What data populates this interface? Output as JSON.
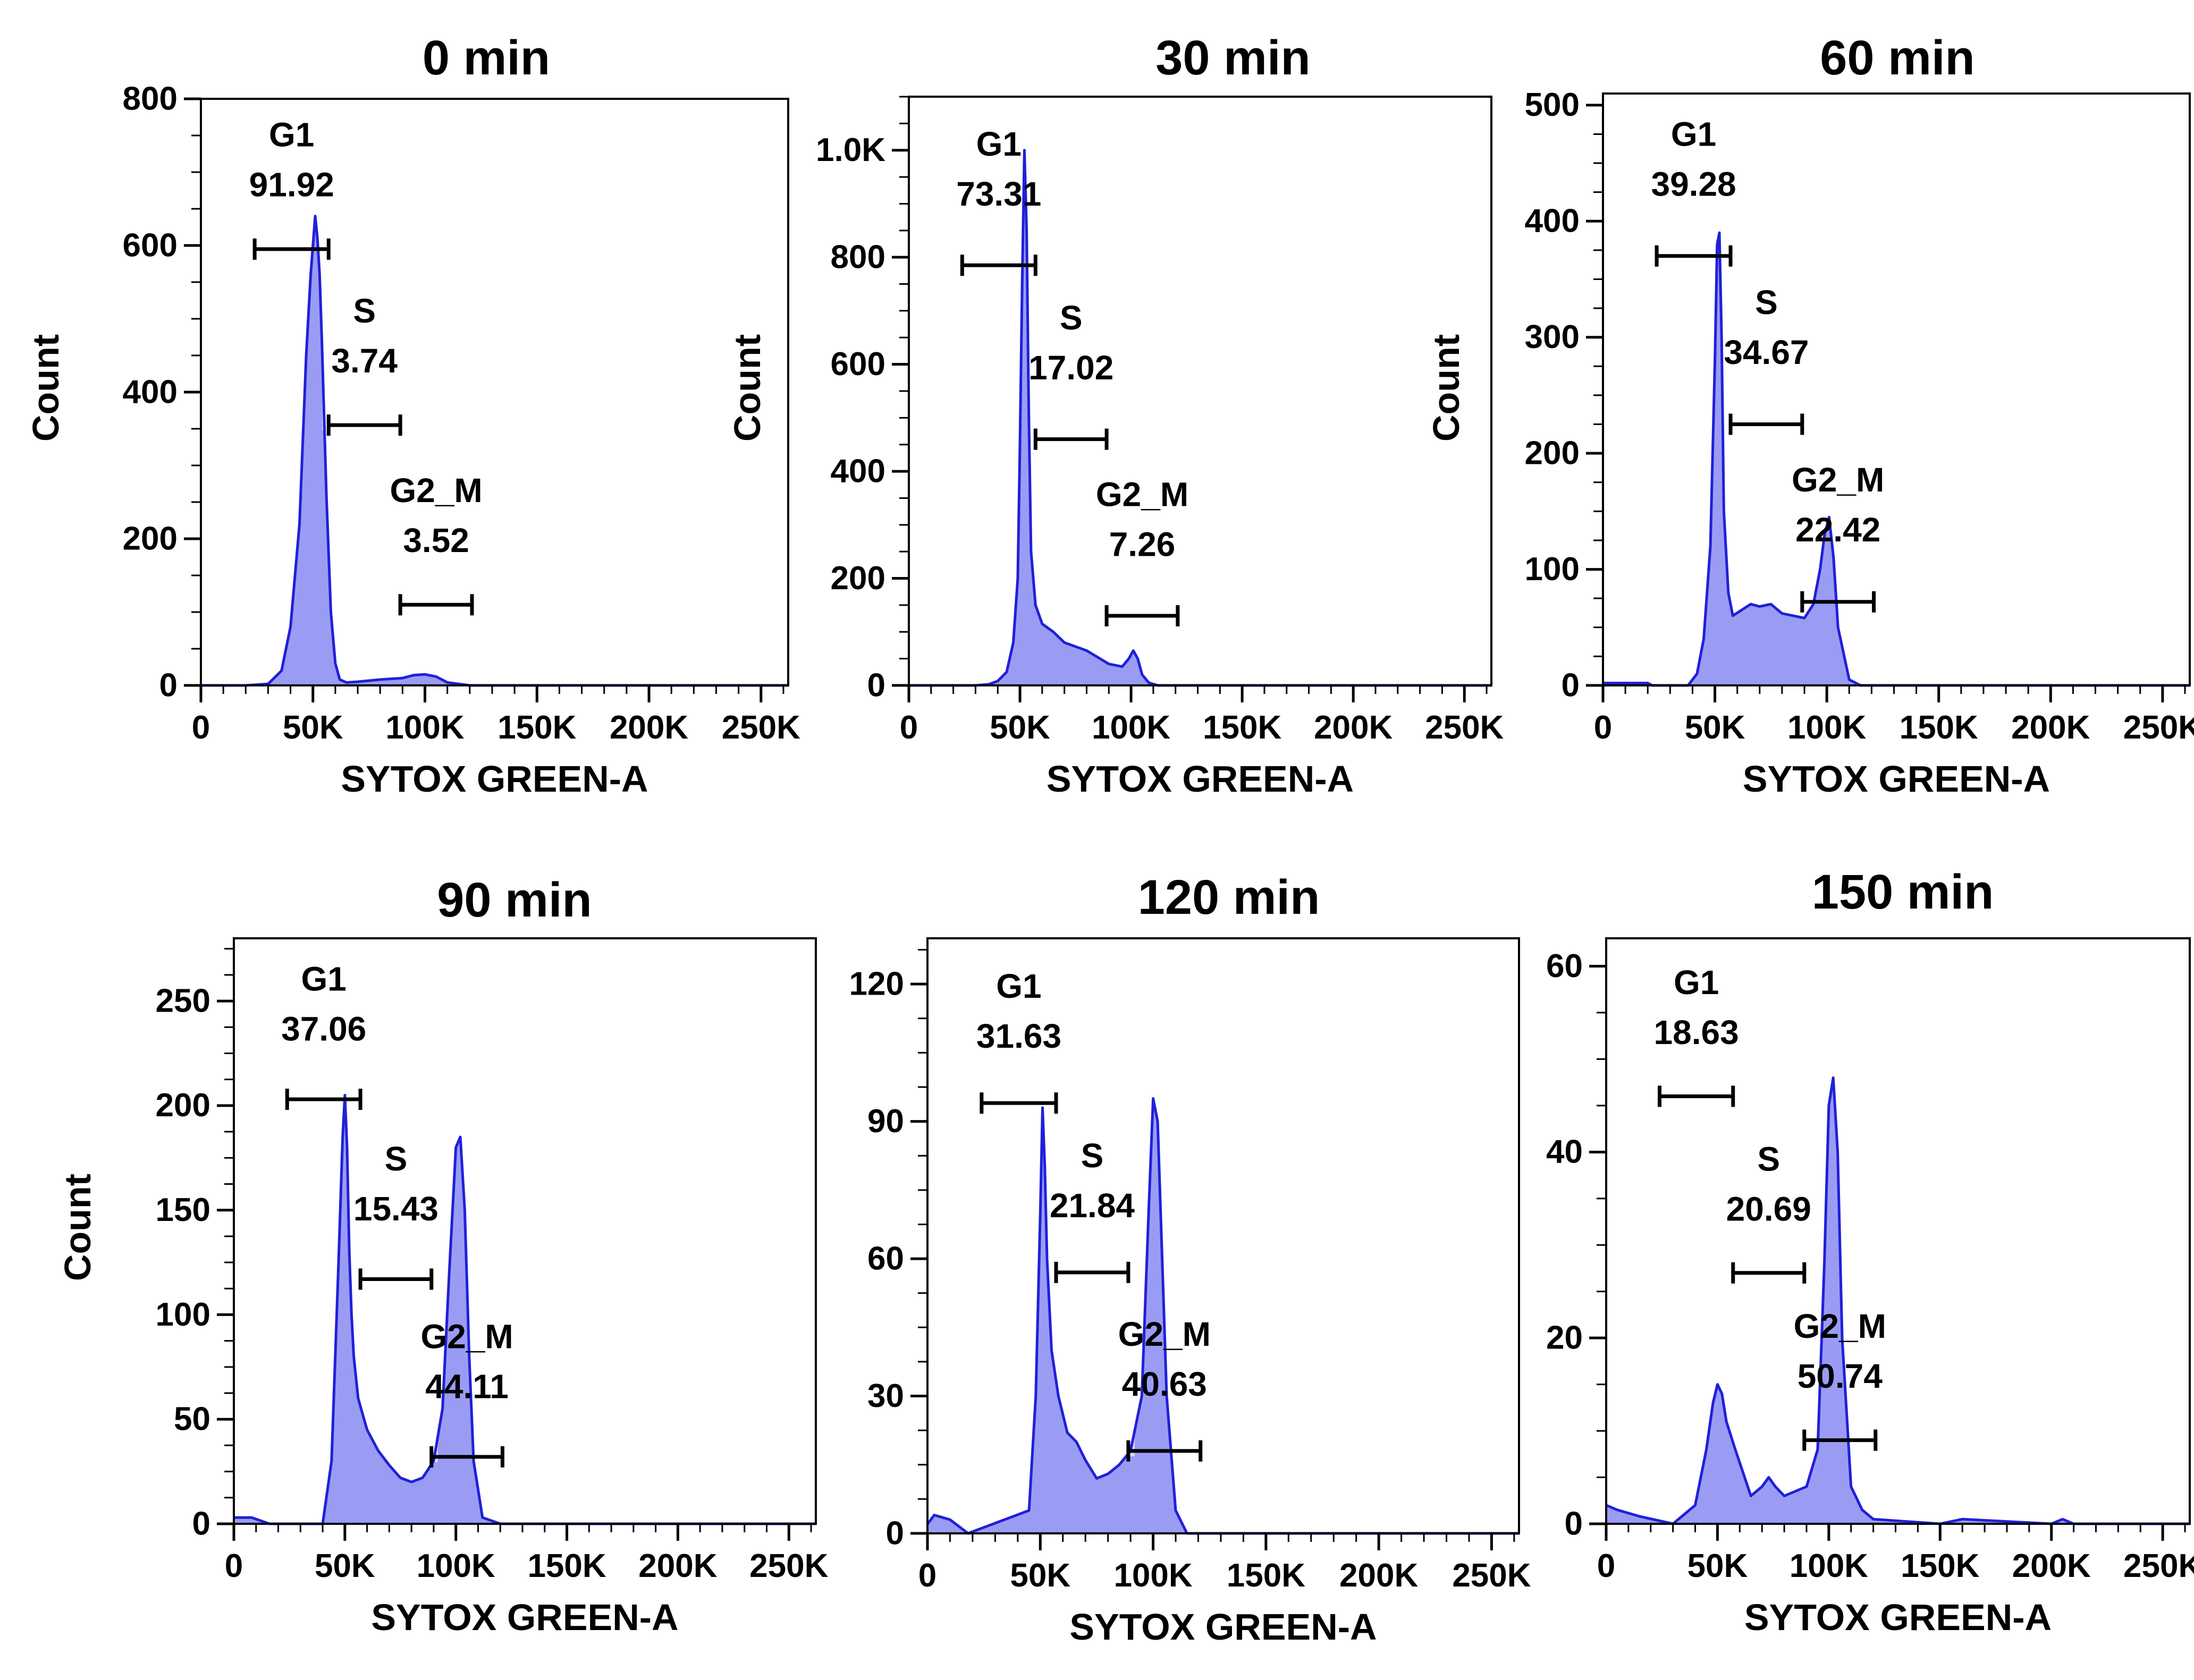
{
  "figure": {
    "x_axis_label": "SYTOX GREEN-A",
    "y_axis_label": "Count",
    "x_tick_labels": [
      "0",
      "50K",
      "100K",
      "150K",
      "200K",
      "250K"
    ],
    "colors": {
      "fill": "#9a9cf4",
      "line": "#2020d8",
      "highlight": "#d8dafa",
      "axis": "#000000"
    }
  },
  "chart_data": [
    {
      "type": "area",
      "title": "0 min",
      "xlabel": "SYTOX GREEN-A",
      "ylabel": "Count",
      "xlim": [
        0,
        262144
      ],
      "ylim": [
        0,
        800
      ],
      "y_ticks": [
        0,
        200,
        400,
        600,
        800
      ],
      "y_tick_labels": [
        "0",
        "200",
        "400",
        "600",
        "800"
      ],
      "minor_y_step": 50,
      "x": [
        0,
        20000,
        30000,
        36000,
        40000,
        44000,
        47000,
        49000,
        50000,
        51000,
        52000,
        53000,
        54000,
        56000,
        58000,
        60000,
        62000,
        65000,
        70000,
        80000,
        90000,
        95000,
        100000,
        105000,
        110000,
        120000,
        262144
      ],
      "y": [
        0,
        0,
        2,
        20,
        80,
        220,
        450,
        560,
        600,
        640,
        610,
        560,
        470,
        260,
        100,
        30,
        8,
        4,
        5,
        8,
        10,
        14,
        15,
        12,
        4,
        0,
        0
      ],
      "gates": [
        {
          "name": "G1",
          "value": "91.92",
          "start": 24000,
          "end": 57000,
          "y": 595,
          "label_y": 735
        },
        {
          "name": "S",
          "value": "3.74",
          "start": 57000,
          "end": 89000,
          "y": 355,
          "label_y": 495
        },
        {
          "name": "G2_M",
          "value": "3.52",
          "start": 89000,
          "end": 121000,
          "y": 110,
          "label_y": 250
        }
      ]
    },
    {
      "type": "area",
      "title": "30 min",
      "xlabel": "SYTOX GREEN-A",
      "ylabel": "Count",
      "xlim": [
        0,
        262144
      ],
      "ylim": [
        0,
        1100
      ],
      "y_ticks": [
        0,
        200,
        400,
        600,
        800,
        1000
      ],
      "y_tick_labels": [
        "0",
        "200",
        "400",
        "600",
        "800",
        "1.0K"
      ],
      "minor_y_step": 50,
      "x": [
        0,
        30000,
        36000,
        40000,
        44000,
        47000,
        49000,
        50000,
        51000,
        52000,
        53000,
        54000,
        55000,
        57000,
        60000,
        65000,
        70000,
        80000,
        90000,
        96000,
        99000,
        101000,
        103000,
        105000,
        108000,
        112000,
        120000,
        262144
      ],
      "y": [
        0,
        0,
        2,
        8,
        25,
        80,
        200,
        450,
        750,
        1000,
        850,
        500,
        250,
        150,
        115,
        100,
        80,
        65,
        40,
        35,
        50,
        65,
        50,
        20,
        5,
        0,
        0,
        0
      ],
      "gates": [
        {
          "name": "G1",
          "value": "73.31",
          "start": 24000,
          "end": 57000,
          "y": 785,
          "label_y": 990
        },
        {
          "name": "S",
          "value": "17.02",
          "start": 57000,
          "end": 89000,
          "y": 460,
          "label_y": 665
        },
        {
          "name": "G2_M",
          "value": "7.26",
          "start": 89000,
          "end": 121000,
          "y": 130,
          "label_y": 335
        }
      ]
    },
    {
      "type": "area",
      "title": "60 min",
      "xlabel": "SYTOX GREEN-A",
      "ylabel": "Count",
      "xlim": [
        0,
        262144
      ],
      "ylim": [
        0,
        510
      ],
      "y_ticks": [
        0,
        100,
        200,
        300,
        400,
        500
      ],
      "y_tick_labels": [
        "0",
        "100",
        "200",
        "300",
        "400",
        "500"
      ],
      "minor_y_step": 25,
      "x": [
        0,
        20000,
        22000,
        38000,
        42000,
        45000,
        48000,
        50000,
        51000,
        52000,
        53000,
        54000,
        56000,
        58000,
        62000,
        66000,
        70000,
        75000,
        80000,
        85000,
        90000,
        94000,
        97000,
        99000,
        101000,
        103000,
        105000,
        110000,
        115000,
        262144
      ],
      "y": [
        2,
        2,
        0,
        0,
        10,
        40,
        120,
        280,
        380,
        390,
        300,
        150,
        80,
        60,
        65,
        70,
        68,
        70,
        62,
        60,
        58,
        70,
        100,
        130,
        145,
        110,
        50,
        5,
        0,
        0
      ],
      "gates": [
        {
          "name": "G1",
          "value": "39.28",
          "start": 24000,
          "end": 57000,
          "y": 370,
          "label_y": 465
        },
        {
          "name": "S",
          "value": "34.67",
          "start": 57000,
          "end": 89000,
          "y": 225,
          "label_y": 320
        },
        {
          "name": "G2_M",
          "value": "22.42",
          "start": 89000,
          "end": 121000,
          "y": 72,
          "label_y": 167
        }
      ]
    },
    {
      "type": "area",
      "title": "90 min",
      "xlabel": "SYTOX GREEN-A",
      "ylabel": "Count",
      "xlim": [
        0,
        262144
      ],
      "ylim": [
        0,
        280
      ],
      "y_ticks": [
        0,
        50,
        100,
        150,
        200,
        250
      ],
      "y_tick_labels": [
        "0",
        "50",
        "100",
        "150",
        "200",
        "250"
      ],
      "minor_y_step": 12.5,
      "x": [
        0,
        8000,
        16000,
        40000,
        44000,
        47000,
        49000,
        50000,
        51000,
        52000,
        53000,
        54000,
        56000,
        60000,
        65000,
        70000,
        75000,
        80000,
        85000,
        90000,
        94000,
        97000,
        100000,
        102000,
        104000,
        106000,
        108000,
        112000,
        120000,
        262144
      ],
      "y": [
        3,
        3,
        0,
        0,
        30,
        120,
        185,
        205,
        180,
        130,
        100,
        80,
        60,
        45,
        35,
        28,
        22,
        20,
        22,
        30,
        55,
        120,
        180,
        185,
        150,
        80,
        30,
        3,
        0,
        0
      ],
      "gates": [
        {
          "name": "G1",
          "value": "37.06",
          "start": 24000,
          "end": 57000,
          "y": 203,
          "label_y": 255
        },
        {
          "name": "S",
          "value": "15.43",
          "start": 57000,
          "end": 89000,
          "y": 117,
          "label_y": 169
        },
        {
          "name": "G2_M",
          "value": "44.11",
          "start": 89000,
          "end": 121000,
          "y": 32,
          "label_y": 84
        }
      ]
    },
    {
      "type": "area",
      "title": "120 min",
      "xlabel": "SYTOX GREEN-A",
      "ylabel": "Count",
      "xlim": [
        0,
        262144
      ],
      "ylim": [
        0,
        130
      ],
      "y_ticks": [
        0,
        30,
        60,
        90,
        120
      ],
      "y_tick_labels": [
        "0",
        "30",
        "60",
        "90",
        "120"
      ],
      "minor_y_step": 7.5,
      "x": [
        0,
        3000,
        10000,
        18000,
        45000,
        48000,
        50000,
        51000,
        52000,
        53000,
        55000,
        58000,
        62000,
        66000,
        70000,
        75000,
        80000,
        85000,
        90000,
        95000,
        98000,
        100000,
        102000,
        104000,
        106000,
        110000,
        115000,
        262144
      ],
      "y": [
        2,
        4,
        3,
        0,
        5,
        30,
        70,
        93,
        80,
        60,
        40,
        30,
        22,
        20,
        16,
        12,
        13,
        15,
        18,
        30,
        70,
        95,
        90,
        60,
        30,
        5,
        0,
        0
      ],
      "gates": [
        {
          "name": "G1",
          "value": "31.63",
          "start": 24000,
          "end": 57000,
          "y": 94,
          "label_y": 117
        },
        {
          "name": "S",
          "value": "21.84",
          "start": 57000,
          "end": 89000,
          "y": 57,
          "label_y": 80
        },
        {
          "name": "G2_M",
          "value": "40.63",
          "start": 89000,
          "end": 121000,
          "y": 18,
          "label_y": 41
        }
      ]
    },
    {
      "type": "area",
      "title": "150 min",
      "xlabel": "SYTOX GREEN-A",
      "ylabel": "Count",
      "xlim": [
        0,
        262144
      ],
      "ylim": [
        0,
        63
      ],
      "y_ticks": [
        0,
        20,
        40,
        60
      ],
      "y_tick_labels": [
        "0",
        "20",
        "40",
        "60"
      ],
      "minor_y_step": 5,
      "x": [
        0,
        5000,
        15000,
        30000,
        40000,
        45000,
        48000,
        50000,
        52000,
        54000,
        58000,
        65000,
        70000,
        73000,
        76000,
        80000,
        90000,
        95000,
        98000,
        100000,
        102000,
        104000,
        106000,
        110000,
        115000,
        120000,
        150000,
        160000,
        200000,
        205000,
        210000,
        262144
      ],
      "y": [
        2,
        1.5,
        0.8,
        0,
        2,
        8,
        13,
        15,
        14,
        11,
        8,
        3,
        4,
        5,
        4,
        3,
        4,
        8,
        28,
        45,
        48,
        40,
        20,
        4,
        1.5,
        0.5,
        0,
        0.5,
        0,
        0.5,
        0,
        0
      ],
      "gates": [
        {
          "name": "G1",
          "value": "18.63",
          "start": 24000,
          "end": 57000,
          "y": 46,
          "label_y": 57
        },
        {
          "name": "S",
          "value": "20.69",
          "start": 57000,
          "end": 89000,
          "y": 27,
          "label_y": 38
        },
        {
          "name": "G2_M",
          "value": "50.74",
          "start": 89000,
          "end": 121000,
          "y": 9,
          "label_y": 20
        }
      ]
    }
  ]
}
